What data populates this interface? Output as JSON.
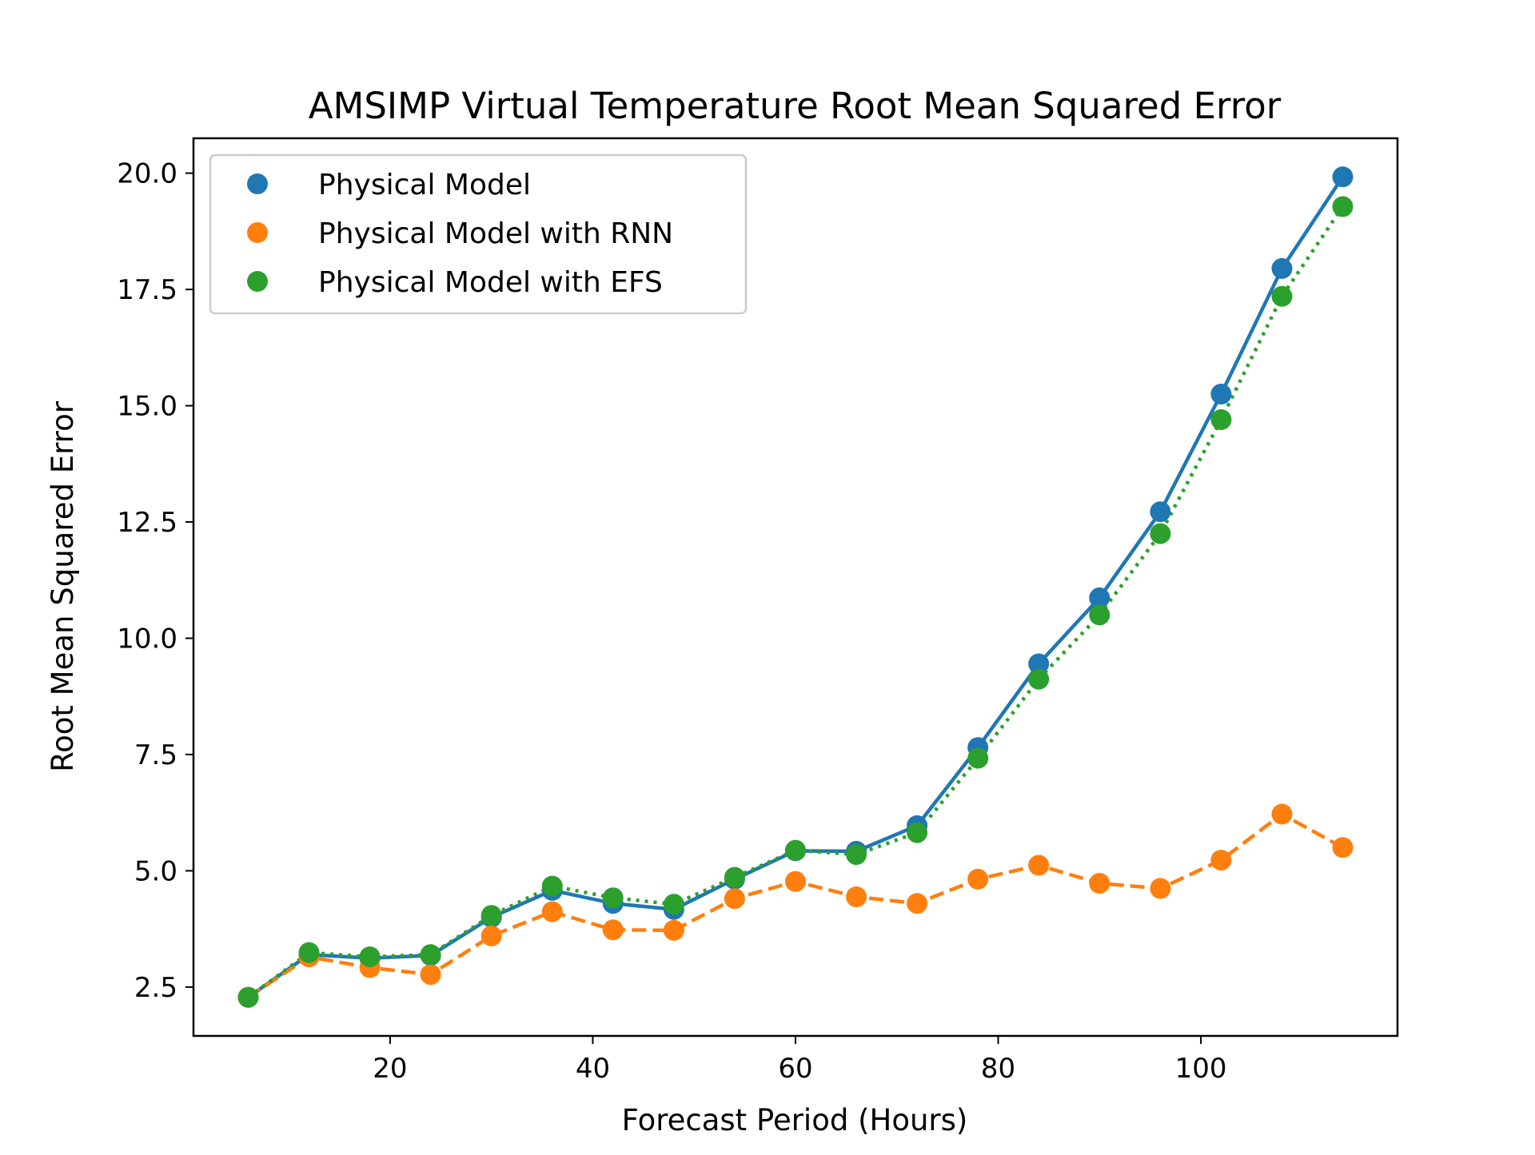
{
  "chart_data": {
    "type": "line",
    "title": "AMSIMP Virtual Temperature Root Mean Squared Error",
    "xlabel": "Forecast Period (Hours)",
    "ylabel": "Root Mean Squared Error",
    "xlim": [
      0.6,
      119.4
    ],
    "ylim": [
      1.45,
      20.75
    ],
    "xticks": [
      20,
      40,
      60,
      80,
      100
    ],
    "xtick_labels": [
      "20",
      "40",
      "60",
      "80",
      "100"
    ],
    "yticks": [
      2.5,
      5.0,
      7.5,
      10.0,
      12.5,
      15.0,
      17.5,
      20.0
    ],
    "ytick_labels": [
      "2.5",
      "5.0",
      "7.5",
      "10.0",
      "12.5",
      "15.0",
      "17.5",
      "20.0"
    ],
    "grid": false,
    "legend_position": "top-left",
    "x": [
      6,
      12,
      18,
      24,
      30,
      36,
      42,
      48,
      54,
      60,
      66,
      72,
      78,
      84,
      90,
      96,
      102,
      108,
      114
    ],
    "series": [
      {
        "name": "Physical Model",
        "color": "#1f77b4",
        "line_style": "solid",
        "values": [
          2.28,
          3.2,
          3.12,
          3.18,
          4.0,
          4.58,
          4.3,
          4.17,
          4.82,
          5.43,
          5.42,
          5.97,
          7.65,
          9.45,
          10.87,
          12.72,
          15.25,
          17.95,
          19.92
        ]
      },
      {
        "name": "Physical Model with RNN",
        "color": "#ff7f0e",
        "line_style": "dashed",
        "values": [
          2.28,
          3.15,
          2.92,
          2.77,
          3.6,
          4.12,
          3.73,
          3.72,
          4.4,
          4.77,
          4.44,
          4.3,
          4.82,
          5.12,
          4.73,
          4.62,
          5.23,
          6.22,
          5.5
        ]
      },
      {
        "name": "Physical Model with EFS",
        "color": "#2ca02c",
        "line_style": "dotted",
        "values": [
          2.28,
          3.24,
          3.15,
          3.2,
          4.04,
          4.67,
          4.42,
          4.28,
          4.86,
          5.44,
          5.35,
          5.82,
          7.42,
          9.12,
          10.5,
          12.25,
          14.7,
          17.35,
          19.28
        ]
      }
    ]
  }
}
